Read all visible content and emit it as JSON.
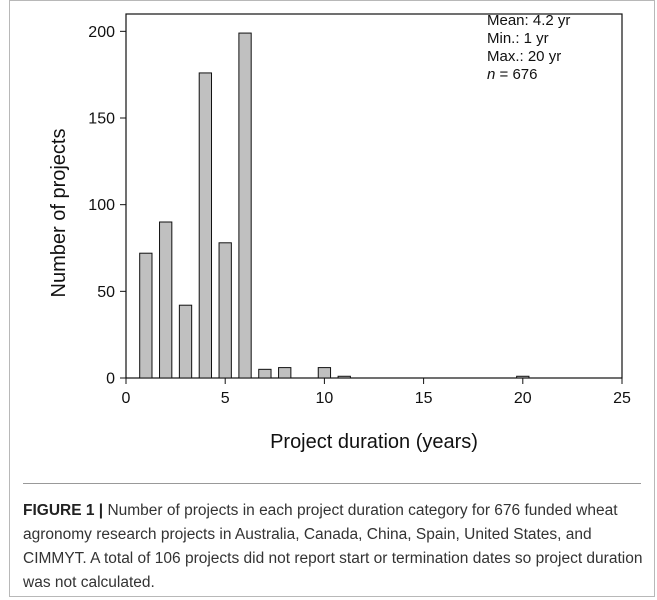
{
  "chart_data": {
    "type": "bar",
    "xlabel": "Project duration (years)",
    "ylabel": "Number of projects",
    "xlim": [
      0,
      25
    ],
    "ylim": [
      0,
      210
    ],
    "xticks": [
      0,
      5,
      10,
      15,
      20,
      25
    ],
    "yticks": [
      0,
      50,
      100,
      150,
      200
    ],
    "grid": false,
    "bar_color": "#c0c0c0",
    "x": [
      1,
      2,
      3,
      4,
      5,
      6,
      7,
      8,
      10,
      11,
      20
    ],
    "values": [
      72,
      90,
      42,
      176,
      78,
      199,
      5,
      6,
      6,
      1,
      1
    ],
    "annotations": {
      "mean": "Mean: 4.2 yr",
      "min": "Min.: 1 yr",
      "max": "Max.: 20 yr",
      "n_label": "n",
      "n_value": " = 676"
    }
  },
  "caption": {
    "label": "FIGURE 1 |",
    "text": " Number of projects in each project duration category for 676 funded wheat agronomy research projects in Australia, Canada, China, Spain, United States, and CIMMYT. A total of 106 projects did not report start or termination dates so project duration was not calculated."
  }
}
